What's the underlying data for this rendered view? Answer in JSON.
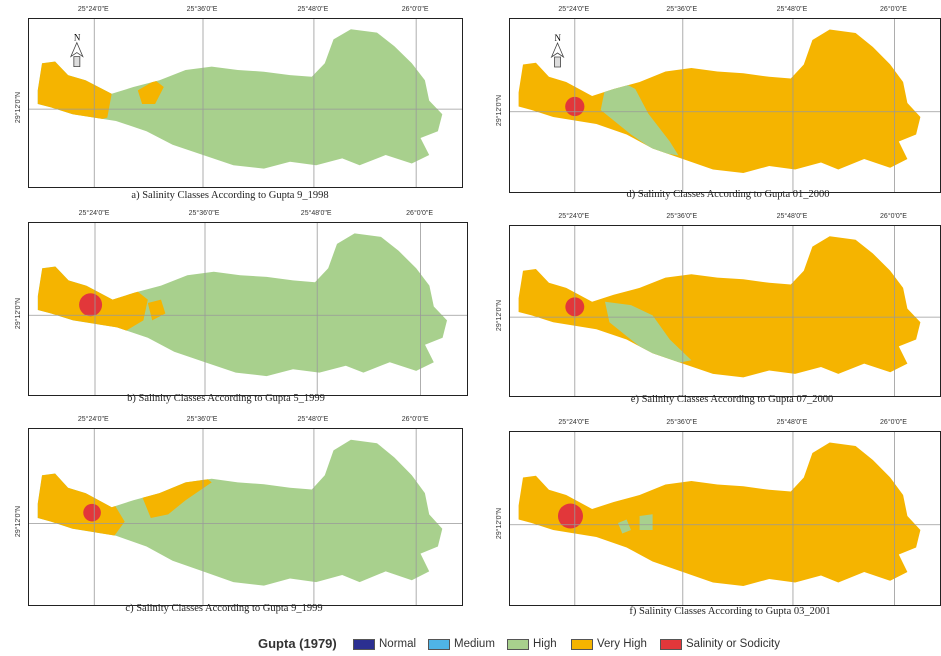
{
  "colors": {
    "normal": "#2b2f91",
    "medium": "#4fb4e6",
    "high": "#a8d08d",
    "very_high": "#f5b400",
    "salinity": "#e2373a"
  },
  "map_ticks": {
    "top": [
      "25°24'0\"E",
      "25°36'0\"E",
      "25°48'0\"E",
      "26°0'0\"E"
    ],
    "left": "29°12'0\"N"
  },
  "panels": [
    {
      "id": "a",
      "caption": "a) Salinity Classes According to Gupta 9_1998",
      "classes": [
        "high",
        "very_high"
      ]
    },
    {
      "id": "b",
      "caption": "b) Salinity Classes According to Gupta  5_1999",
      "classes": [
        "high",
        "very_high",
        "salinity"
      ]
    },
    {
      "id": "c",
      "caption": "c) Salinity Classes According to Gupta  9_1999",
      "classes": [
        "high",
        "very_high",
        "salinity"
      ]
    },
    {
      "id": "d",
      "caption": "d) Salinity Classes According to Gupta  01_2000",
      "classes": [
        "high",
        "very_high",
        "salinity"
      ]
    },
    {
      "id": "e",
      "caption": "e) Salinity Classes According to Gupta  07_2000",
      "classes": [
        "high",
        "very_high",
        "salinity"
      ]
    },
    {
      "id": "f",
      "caption": "f) Salinity Classes According to Gupta  03_2001",
      "classes": [
        "high",
        "very_high",
        "salinity"
      ]
    }
  ],
  "legend": {
    "title": "Gupta (1979)",
    "items": [
      {
        "label": "Normal",
        "color": "#2b2f91"
      },
      {
        "label": "Medium",
        "color": "#4fb4e6"
      },
      {
        "label": "High",
        "color": "#a8d08d"
      },
      {
        "label": "Very High",
        "color": "#f5b400"
      },
      {
        "label": "Salinity or Sodicity",
        "color": "#e2373a"
      }
    ]
  }
}
